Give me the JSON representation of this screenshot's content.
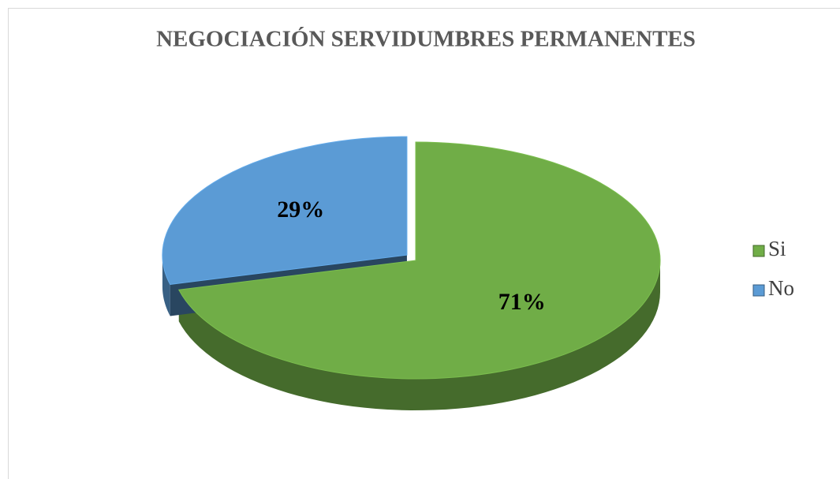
{
  "chart_data": {
    "type": "pie",
    "title": "NEGOCIACIÓN SERVIDUMBRES PERMANENTES",
    "categories": [
      "Si",
      "No"
    ],
    "values": [
      71,
      29
    ],
    "value_labels": [
      "71%",
      "29%"
    ],
    "colors": [
      "#70ad47",
      "#5b9bd5"
    ],
    "legend": "right"
  }
}
